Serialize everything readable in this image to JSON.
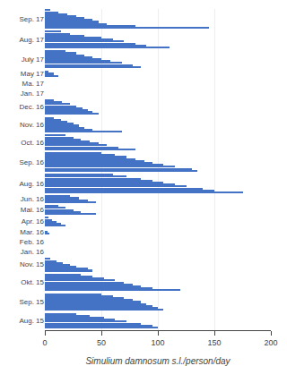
{
  "chart_data": {
    "type": "bar",
    "orientation": "horizontal",
    "xlabel": "Simulium damnosum s.l./person/day",
    "categories": [
      "Sep. 17",
      "Aug. 17",
      "July 17",
      "May 17",
      "Ma. 17",
      "Jan. 17",
      "Dec. 16",
      "Nov. 16",
      "Oct. 16",
      "Sep. 16",
      "Aug. 16",
      "Jun. 16",
      "Mai. 16",
      "Apr. 16",
      "Mar. 16",
      "Feb. 16",
      "Jan. 16",
      "Nov. 15",
      "Okt. 15",
      "Sep. 15",
      "Aug. 15"
    ],
    "values": [
      [
        5,
        12,
        20,
        28,
        35,
        42,
        48,
        55,
        80,
        145
      ],
      [
        14,
        22,
        35,
        50,
        60,
        70,
        80,
        90,
        110
      ],
      [
        18,
        28,
        35,
        42,
        50,
        58,
        68,
        78,
        85
      ],
      [
        3,
        8,
        12
      ],
      [],
      [],
      [
        8,
        15,
        22,
        28,
        33,
        38,
        42,
        48
      ],
      [
        8,
        14,
        20,
        25,
        30,
        35,
        42,
        68
      ],
      [
        18,
        25,
        32,
        40,
        48,
        55,
        65,
        80
      ],
      [
        50,
        62,
        72,
        80,
        88,
        95,
        105,
        115,
        130,
        135
      ],
      [
        60,
        72,
        85,
        95,
        105,
        115,
        125,
        140,
        150,
        175
      ],
      [
        22,
        30,
        38,
        45
      ],
      [
        12,
        18,
        25,
        32,
        45
      ],
      [
        3,
        6,
        10,
        14,
        18
      ],
      [
        2,
        4
      ],
      [],
      [],
      [
        5,
        10,
        16,
        22,
        28,
        38,
        42
      ],
      [
        32,
        42,
        52,
        62,
        70,
        78,
        85,
        95,
        120
      ],
      [
        50,
        60,
        70,
        78,
        85,
        90,
        95,
        100,
        105
      ],
      [
        28,
        40,
        52,
        62,
        72,
        85,
        95,
        100
      ]
    ],
    "color": "#4472C4",
    "xlim": [
      0,
      200
    ],
    "xticks": [
      0,
      50,
      100,
      150,
      200
    ],
    "grid": true
  }
}
